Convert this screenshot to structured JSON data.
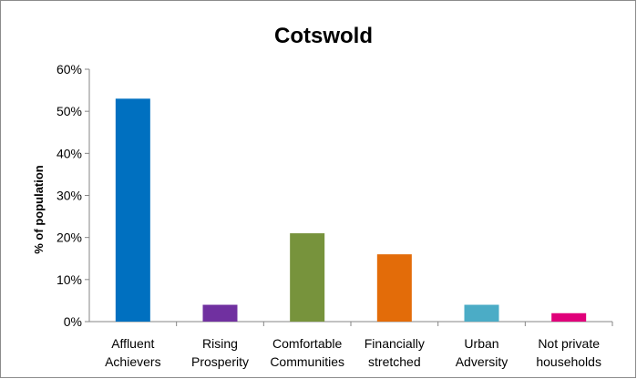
{
  "chart_data": {
    "type": "bar",
    "title": "Cotswold",
    "ylabel": "% of population",
    "xlabel": "",
    "ylim": [
      0,
      60
    ],
    "ytick_step": 10,
    "ytick_suffix": "%",
    "grid": false,
    "legend": "none",
    "categories": [
      {
        "line1": "Affluent",
        "line2": "Achievers"
      },
      {
        "line1": "Rising",
        "line2": "Prosperity"
      },
      {
        "line1": "Comfortable",
        "line2": "Communities"
      },
      {
        "line1": "Financially",
        "line2": "stretched"
      },
      {
        "line1": "Urban",
        "line2": "Adversity"
      },
      {
        "line1": "Not private",
        "line2": "households"
      }
    ],
    "values": [
      53,
      4,
      21,
      16,
      4,
      2
    ],
    "colors": [
      "#0070c0",
      "#7030a0",
      "#77933c",
      "#e36c09",
      "#4bacc6",
      "#e0007a"
    ]
  }
}
